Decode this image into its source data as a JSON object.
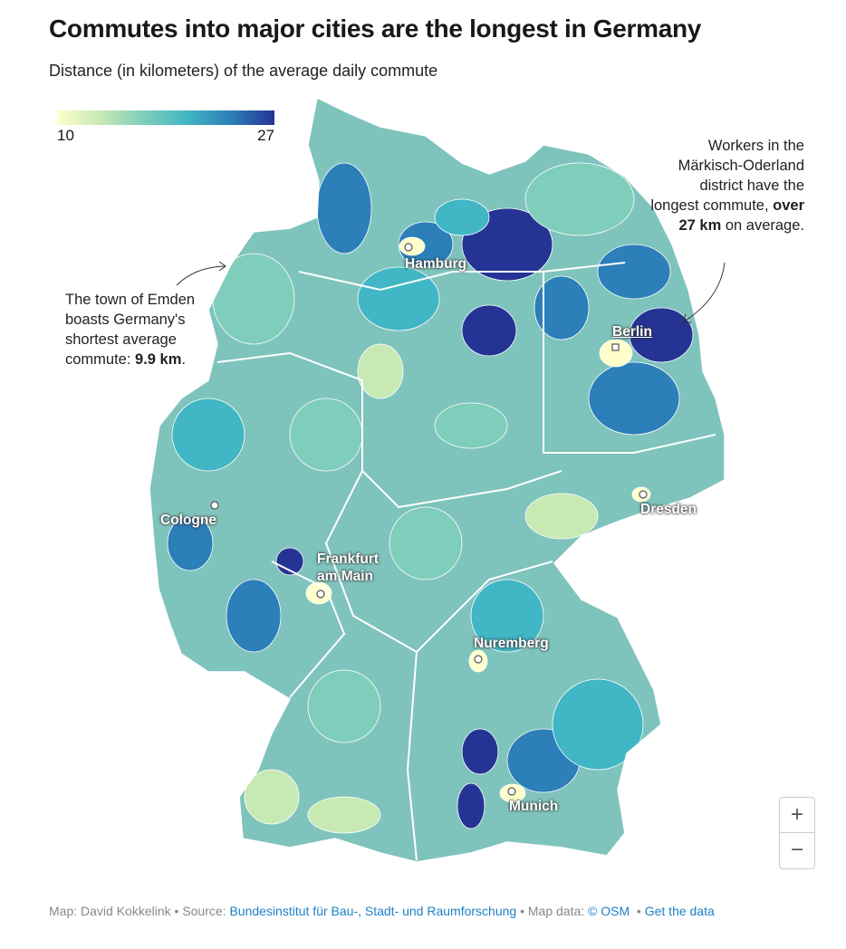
{
  "title": "Commutes into major cities are the longest in Germany",
  "subtitle": "Distance (in kilometers) of the average daily commute",
  "legend": {
    "min": "10",
    "max": "27",
    "colors": [
      "#ffffcc",
      "#c7e9b4",
      "#7fcdbb",
      "#41b6c4",
      "#2c7fb8",
      "#253494"
    ]
  },
  "annotations": {
    "east": {
      "text": "Workers in the Märkisch-Oderland district have the longest commute, ",
      "bold": "over 27 km",
      "end": " on average."
    },
    "west": {
      "text": "The town of Emden boasts Germany's shortest average commute: ",
      "bold": "9.9 km",
      "end": "."
    }
  },
  "cities": {
    "hamburg": "Hamburg",
    "berlin": "Berlin",
    "cologne": "Cologne",
    "frankfurt": "Frankfurt am Main",
    "dresden": "Dresden",
    "nuremberg": "Nuremberg",
    "munich": "Munich"
  },
  "zoom": {
    "in": "+",
    "out": "−"
  },
  "footer": {
    "map": "Map: David Kokkelink",
    "source_label": "Source:",
    "source": "Bundesinstitut für Bau-, Stadt- und Raumforschung",
    "mapdata_label": "Map data:",
    "osm": "© OSM",
    "get_data": "Get the data",
    "sep": "•"
  }
}
